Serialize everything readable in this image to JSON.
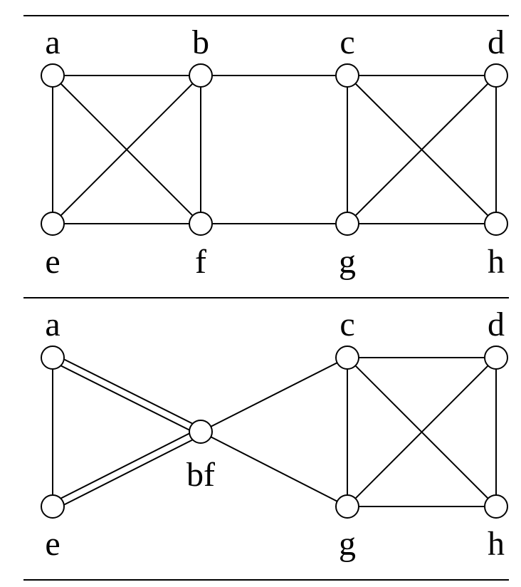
{
  "panels": [
    {
      "id": "original",
      "nodes": [
        {
          "id": "a",
          "label": "a"
        },
        {
          "id": "b",
          "label": "b"
        },
        {
          "id": "c",
          "label": "c"
        },
        {
          "id": "d",
          "label": "d"
        },
        {
          "id": "e",
          "label": "e"
        },
        {
          "id": "f",
          "label": "f"
        },
        {
          "id": "g",
          "label": "g"
        },
        {
          "id": "h",
          "label": "h"
        }
      ],
      "edges": [
        [
          "a",
          "b"
        ],
        [
          "a",
          "e"
        ],
        [
          "a",
          "f"
        ],
        [
          "b",
          "e"
        ],
        [
          "b",
          "f"
        ],
        [
          "b",
          "c"
        ],
        [
          "e",
          "f"
        ],
        [
          "f",
          "g"
        ],
        [
          "c",
          "d"
        ],
        [
          "c",
          "g"
        ],
        [
          "c",
          "h"
        ],
        [
          "d",
          "g"
        ],
        [
          "d",
          "h"
        ],
        [
          "g",
          "h"
        ]
      ]
    },
    {
      "id": "contracted",
      "nodes": [
        {
          "id": "a",
          "label": "a"
        },
        {
          "id": "bf",
          "label": "bf"
        },
        {
          "id": "c",
          "label": "c"
        },
        {
          "id": "d",
          "label": "d"
        },
        {
          "id": "e",
          "label": "e"
        },
        {
          "id": "g",
          "label": "g"
        },
        {
          "id": "h",
          "label": "h"
        }
      ],
      "edges": [
        [
          "a",
          "e"
        ],
        [
          "bf",
          "c"
        ],
        [
          "bf",
          "g"
        ],
        [
          "c",
          "d"
        ],
        [
          "c",
          "g"
        ],
        [
          "c",
          "h"
        ],
        [
          "d",
          "g"
        ],
        [
          "d",
          "h"
        ],
        [
          "g",
          "h"
        ]
      ],
      "double_edges": [
        [
          "a",
          "bf"
        ],
        [
          "e",
          "bf"
        ]
      ]
    }
  ]
}
